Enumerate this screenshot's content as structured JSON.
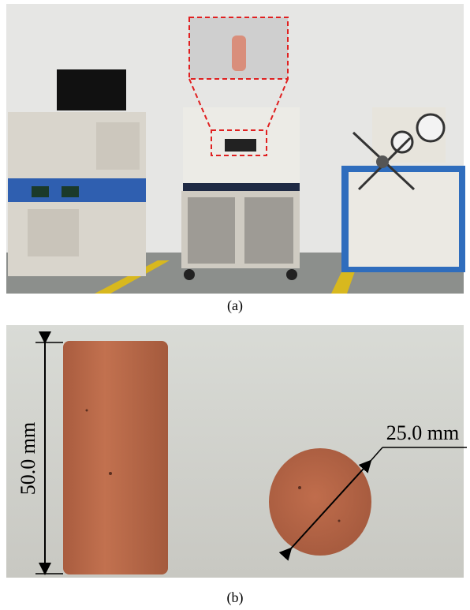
{
  "panels": [
    {
      "label": "(a)"
    },
    {
      "label": "(b)",
      "annotations": [
        "50.0 mm",
        "25.0 mm"
      ]
    }
  ]
}
